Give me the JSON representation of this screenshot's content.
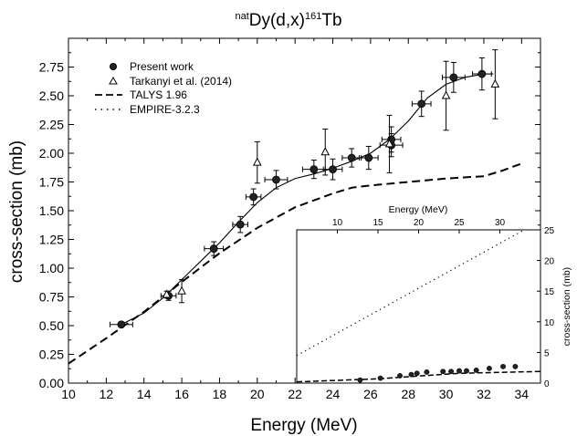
{
  "chart_data": {
    "type": "line",
    "title": {
      "pre": "nat",
      "main": "Dy(d,x)",
      "sup": "161",
      "post": "Tb"
    },
    "xlabel": "Energy (MeV)",
    "ylabel": "cross-section (mb)",
    "xlim": [
      10,
      35
    ],
    "ylim": [
      0,
      3.0
    ],
    "xticks": [
      "10",
      "12",
      "14",
      "16",
      "18",
      "20",
      "22",
      "24",
      "26",
      "28",
      "30",
      "32",
      "34"
    ],
    "yticks": [
      "0.00",
      "0.25",
      "0.50",
      "0.75",
      "1.00",
      "1.25",
      "1.50",
      "1.75",
      "2.00",
      "2.25",
      "2.50",
      "2.75"
    ],
    "legend": {
      "position": "top-left",
      "entries": [
        {
          "label": "Present work",
          "marker": "filled-circle"
        },
        {
          "label": "Tarkanyi et al. (2014)",
          "marker": "open-triangle"
        },
        {
          "label": "TALYS 1.96",
          "line": "dashed"
        },
        {
          "label": "EMPIRE-3.2.3",
          "line": "dotted"
        }
      ]
    },
    "series": [
      {
        "name": "Present work",
        "kind": "points-with-errorbars",
        "points": [
          {
            "x": 12.8,
            "y": 0.51,
            "xerr": 0.6,
            "yerr": 0.02
          },
          {
            "x": 15.3,
            "y": 0.76,
            "xerr": 0.4,
            "yerr": 0.04
          },
          {
            "x": 17.7,
            "y": 1.17,
            "xerr": 0.5,
            "yerr": 0.06
          },
          {
            "x": 19.1,
            "y": 1.38,
            "xerr": 0.4,
            "yerr": 0.07
          },
          {
            "x": 19.8,
            "y": 1.62,
            "xerr": 0.4,
            "yerr": 0.07
          },
          {
            "x": 21.0,
            "y": 1.77,
            "xerr": 0.6,
            "yerr": 0.08
          },
          {
            "x": 23.0,
            "y": 1.86,
            "xerr": 0.6,
            "yerr": 0.08
          },
          {
            "x": 24.0,
            "y": 1.86,
            "xerr": 0.5,
            "yerr": 0.09
          },
          {
            "x": 25.0,
            "y": 1.96,
            "xerr": 0.5,
            "yerr": 0.08
          },
          {
            "x": 25.9,
            "y": 1.96,
            "xerr": 0.5,
            "yerr": 0.1
          },
          {
            "x": 27.1,
            "y": 2.07,
            "xerr": 0.6,
            "yerr": 0.1
          },
          {
            "x": 27.1,
            "y": 2.12,
            "xerr": 0.5,
            "yerr": 0.11
          },
          {
            "x": 28.7,
            "y": 2.43,
            "xerr": 0.5,
            "yerr": 0.11
          },
          {
            "x": 30.4,
            "y": 2.66,
            "xerr": 0.6,
            "yerr": 0.13
          },
          {
            "x": 31.9,
            "y": 2.69,
            "xerr": 0.5,
            "yerr": 0.14
          }
        ]
      },
      {
        "name": "Tarkanyi et al. (2014)",
        "kind": "points-with-errorbars",
        "points": [
          {
            "x": 15.2,
            "y": 0.77,
            "yerr": 0.03
          },
          {
            "x": 16.0,
            "y": 0.8,
            "yerr": 0.1
          },
          {
            "x": 20.0,
            "y": 1.92,
            "yerr": 0.18
          },
          {
            "x": 23.6,
            "y": 2.01,
            "yerr": 0.2
          },
          {
            "x": 27.0,
            "y": 2.08,
            "yerr": 0.25
          },
          {
            "x": 30.0,
            "y": 2.5,
            "yerr": 0.3
          },
          {
            "x": 32.6,
            "y": 2.6,
            "yerr": 0.3
          }
        ]
      },
      {
        "name": "TALYS 1.96",
        "kind": "dashed-line",
        "points": [
          [
            10,
            0.17
          ],
          [
            12,
            0.39
          ],
          [
            14,
            0.62
          ],
          [
            16,
            0.88
          ],
          [
            18,
            1.13
          ],
          [
            20,
            1.35
          ],
          [
            22,
            1.53
          ],
          [
            24,
            1.65
          ],
          [
            25,
            1.7
          ],
          [
            26,
            1.72
          ],
          [
            28,
            1.75
          ],
          [
            30,
            1.78
          ],
          [
            32,
            1.8
          ],
          [
            33,
            1.85
          ],
          [
            34,
            1.91
          ]
        ]
      },
      {
        "kind": "solid-fit-line",
        "points": [
          [
            12.8,
            0.51
          ],
          [
            14,
            0.61
          ],
          [
            15,
            0.74
          ],
          [
            16,
            0.9
          ],
          [
            17,
            1.06
          ],
          [
            18,
            1.22
          ],
          [
            19,
            1.4
          ],
          [
            20,
            1.57
          ],
          [
            21,
            1.7
          ],
          [
            22,
            1.78
          ],
          [
            23,
            1.82
          ],
          [
            24,
            1.87
          ],
          [
            25,
            1.93
          ],
          [
            26,
            2.0
          ],
          [
            27,
            2.12
          ],
          [
            28,
            2.28
          ],
          [
            29,
            2.48
          ],
          [
            30,
            2.6
          ],
          [
            31,
            2.66
          ],
          [
            32,
            2.69
          ],
          [
            32.5,
            2.69
          ]
        ]
      }
    ],
    "inset": {
      "xlabel": "Energy (MeV)",
      "ylabel": "cross-section (mb)",
      "xlim": [
        5,
        35
      ],
      "ylim": [
        0,
        25
      ],
      "xticks": [
        "10",
        "15",
        "20",
        "25",
        "30"
      ],
      "yticks": [
        "0",
        "5",
        "10",
        "15",
        "20",
        "25"
      ],
      "series": [
        {
          "name": "EMPIRE-3.2.3",
          "kind": "dotted-line",
          "points": [
            [
              5,
              4.5
            ],
            [
              33,
              25.0
            ]
          ]
        },
        {
          "name": "TALYS 1.96",
          "kind": "dashed-line",
          "points": [
            [
              5,
              0.2
            ],
            [
              15,
              0.7
            ],
            [
              25,
              1.6
            ],
            [
              35,
              1.9
            ]
          ]
        },
        {
          "name": "Present work",
          "kind": "points",
          "points": [
            [
              12.8,
              0.5
            ],
            [
              15.3,
              0.8
            ],
            [
              17.7,
              1.2
            ],
            [
              19.1,
              1.4
            ],
            [
              19.8,
              1.6
            ],
            [
              21,
              1.8
            ],
            [
              23,
              1.9
            ],
            [
              24,
              1.9
            ],
            [
              25,
              2.0
            ],
            [
              25.9,
              2.0
            ],
            [
              27.1,
              2.1
            ],
            [
              28.7,
              2.4
            ],
            [
              30.4,
              2.7
            ],
            [
              31.9,
              2.7
            ]
          ]
        }
      ]
    }
  }
}
